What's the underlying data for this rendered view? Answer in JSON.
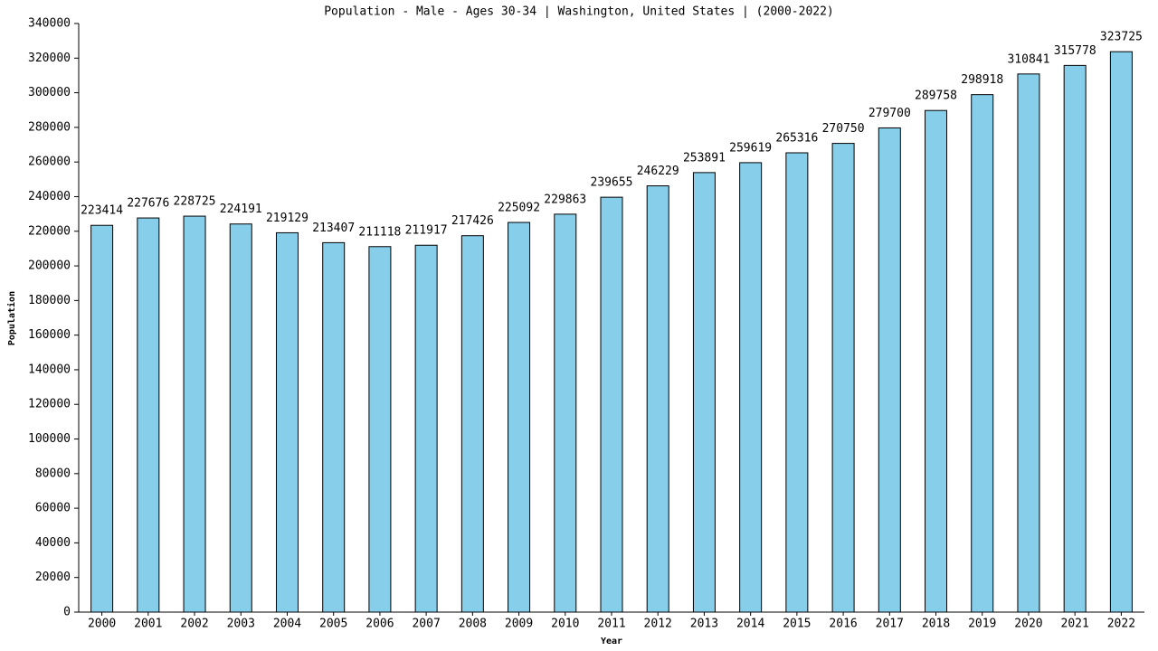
{
  "chart_data": {
    "type": "bar",
    "title": "Population - Male - Ages 30-34 | Washington, United States |  (2000-2022)",
    "x_label": "Year",
    "y_label": "Population",
    "categories": [
      "2000",
      "2001",
      "2002",
      "2003",
      "2004",
      "2005",
      "2006",
      "2007",
      "2008",
      "2009",
      "2010",
      "2011",
      "2012",
      "2013",
      "2014",
      "2015",
      "2016",
      "2017",
      "2018",
      "2019",
      "2020",
      "2021",
      "2022"
    ],
    "values": [
      223414,
      227676,
      228725,
      224191,
      219129,
      213407,
      211118,
      211917,
      217426,
      225092,
      229863,
      239655,
      246229,
      253891,
      259619,
      265316,
      270750,
      279700,
      289758,
      298918,
      310841,
      315778,
      323725
    ],
    "color": "#87ceeb",
    "ylim": [
      0,
      340000
    ],
    "yticks": [
      0,
      20000,
      40000,
      60000,
      80000,
      100000,
      120000,
      140000,
      160000,
      180000,
      200000,
      220000,
      240000,
      260000,
      280000,
      300000,
      320000,
      340000
    ]
  }
}
